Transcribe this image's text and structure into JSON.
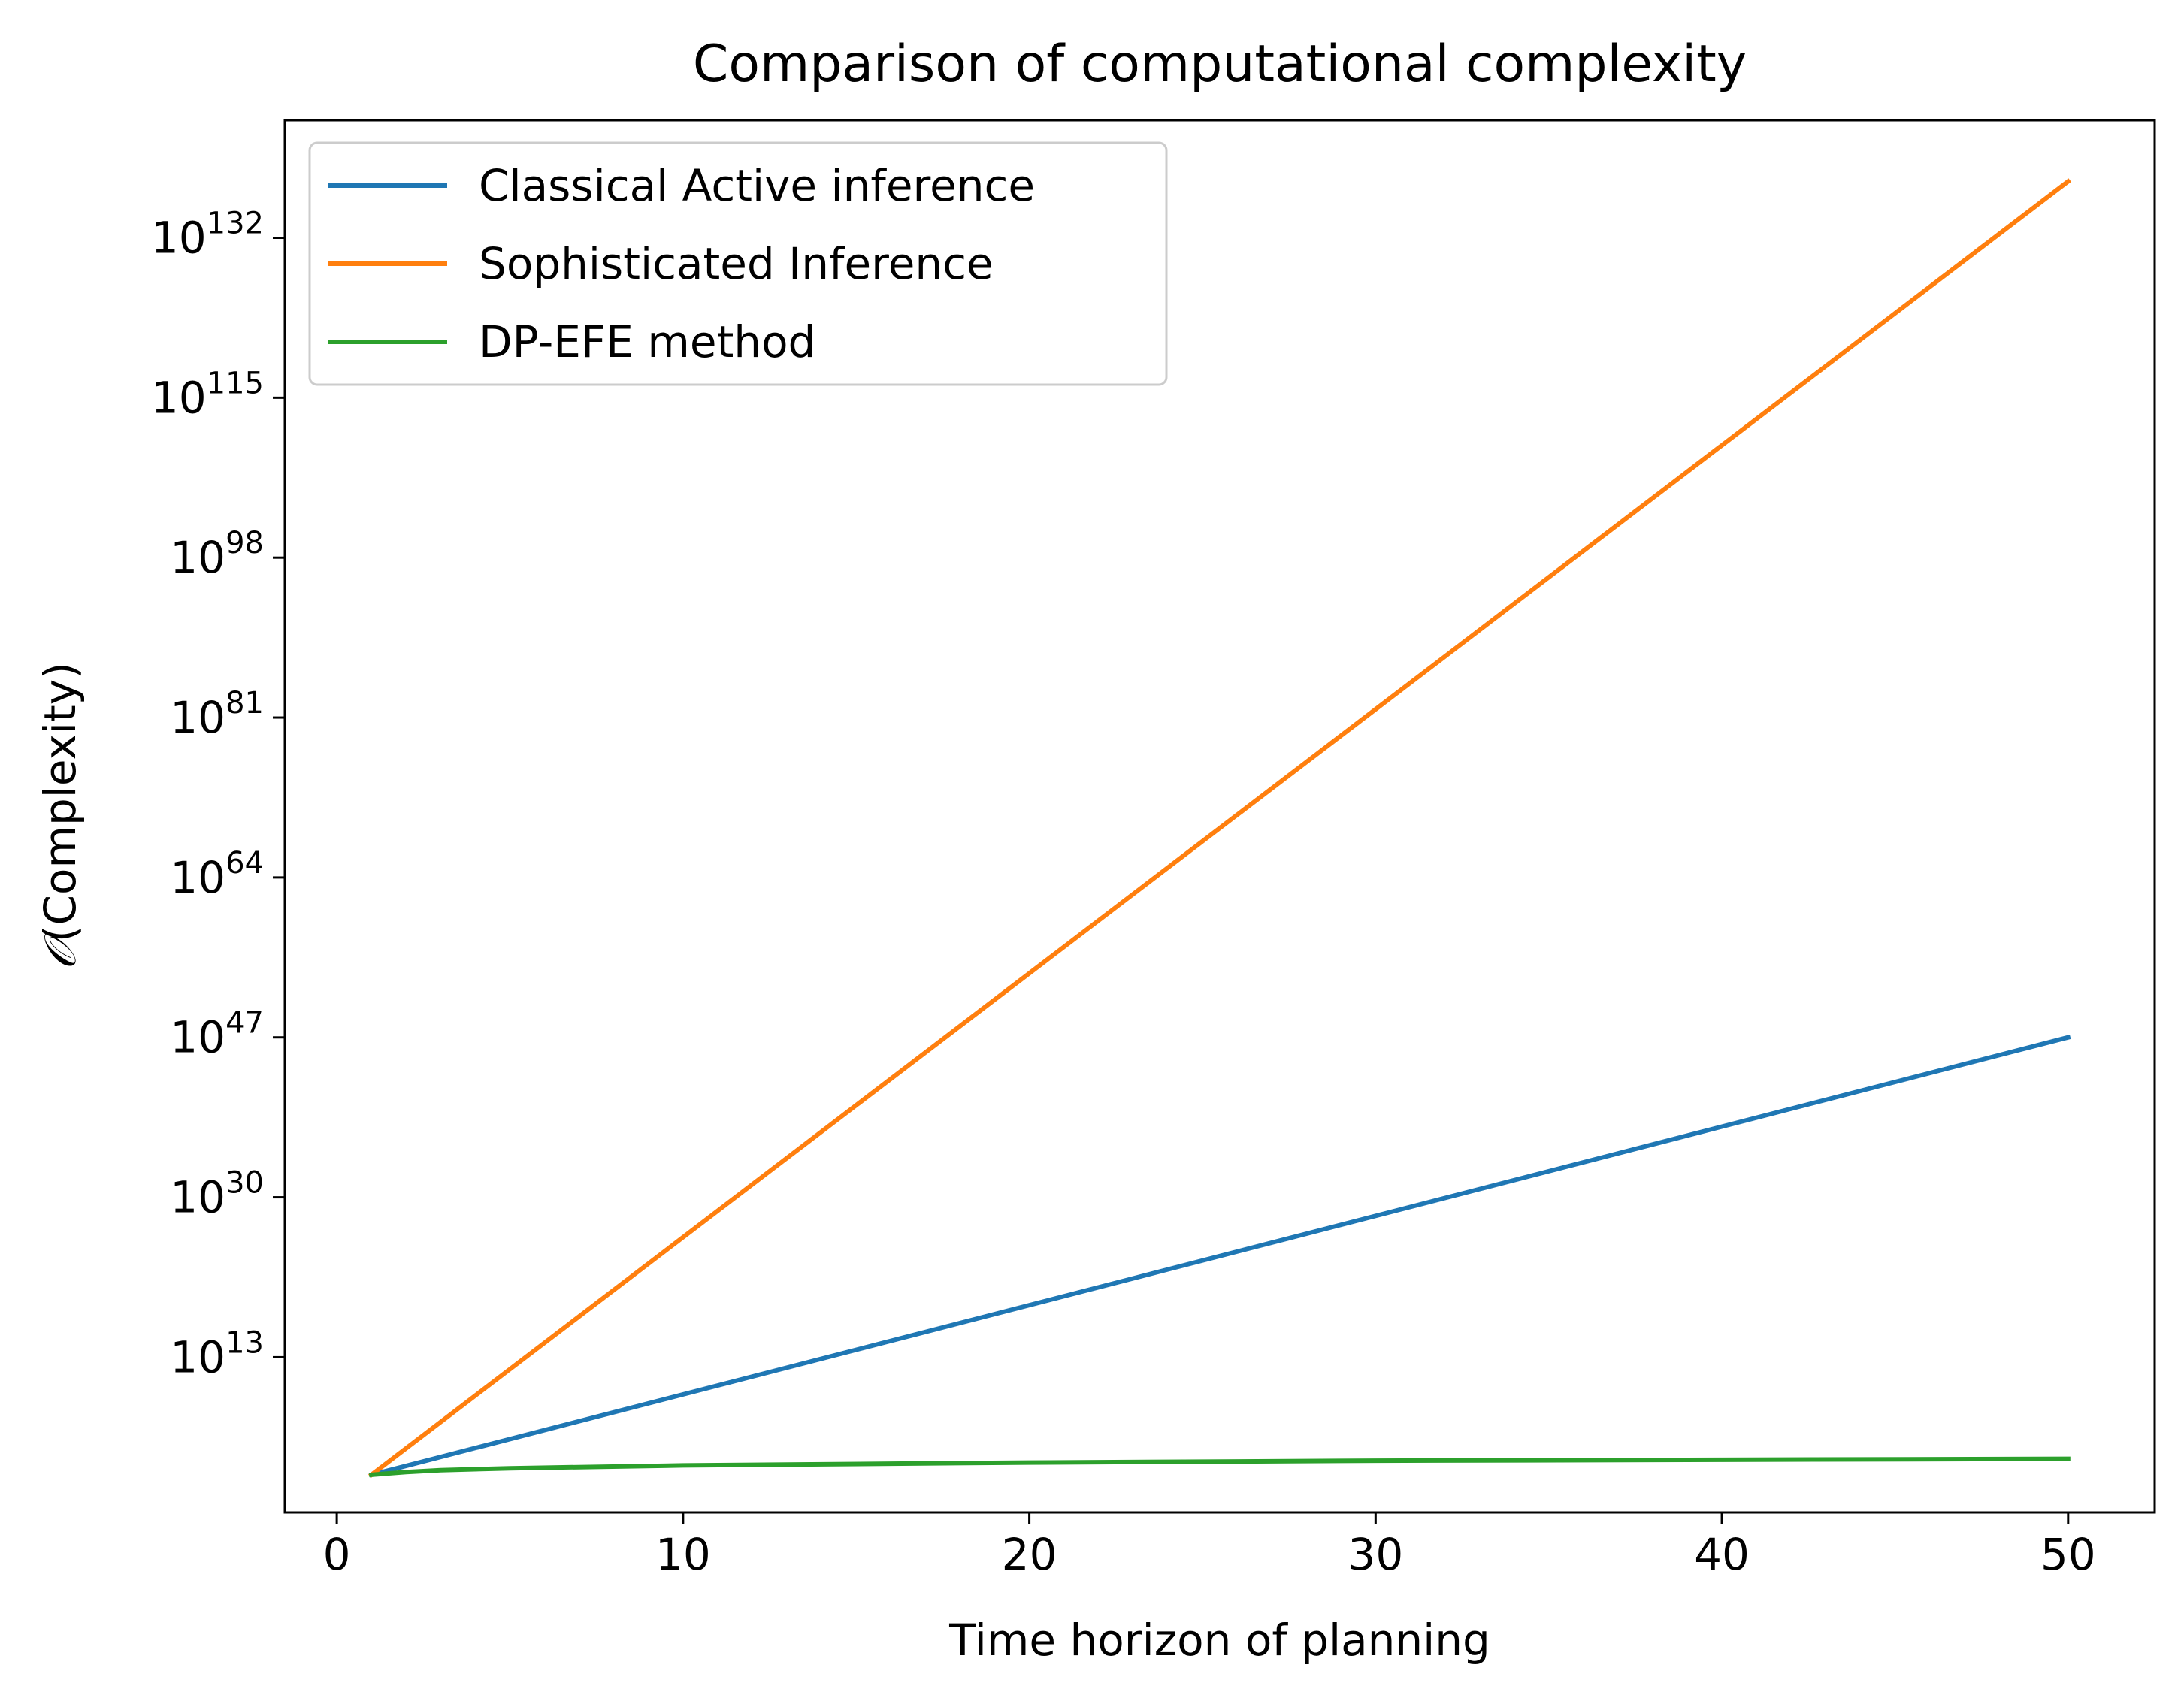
{
  "chart_data": {
    "type": "line",
    "title": "Comparison of computational complexity",
    "xlabel": "Time horizon of planning",
    "ylabel_prefix": "𝒪",
    "ylabel_rest": "(Complexity)",
    "yscale": "log",
    "xlim": [
      -1.5,
      52.5
    ],
    "ylim_log10": [
      -3.5,
      144.5
    ],
    "x_ticks": [
      0,
      10,
      20,
      30,
      40,
      50
    ],
    "x_tick_labels": [
      "0",
      "10",
      "20",
      "30",
      "40",
      "50"
    ],
    "y_ticks_log10": [
      13,
      30,
      47,
      64,
      81,
      98,
      115,
      132
    ],
    "y_tick_base": "10",
    "y_tick_exponents": [
      "13",
      "30",
      "47",
      "64",
      "81",
      "98",
      "115",
      "132"
    ],
    "grid": false,
    "legend_position": "upper-left",
    "series": [
      {
        "name": "Classical Active inference",
        "color": "#1f77b4",
        "x": [
          1,
          50
        ],
        "y_log10": [
          0.5,
          47
        ]
      },
      {
        "name": "Sophisticated Inference",
        "color": "#ff7f0e",
        "x": [
          1,
          50
        ],
        "y_log10": [
          0.5,
          138
        ]
      },
      {
        "name": "DP-EFE method",
        "color": "#2ca02c",
        "x": [
          1,
          2,
          3,
          5,
          10,
          20,
          30,
          40,
          50
        ],
        "y_log10": [
          0.5,
          0.8,
          1.0,
          1.2,
          1.5,
          1.8,
          2.0,
          2.1,
          2.2
        ]
      }
    ]
  }
}
